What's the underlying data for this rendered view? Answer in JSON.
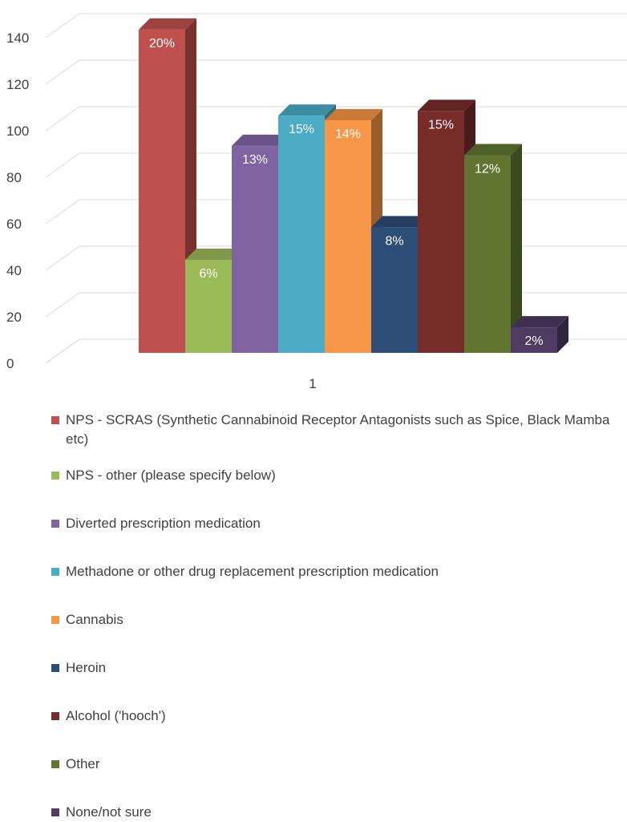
{
  "chart_data": {
    "type": "bar",
    "title": "",
    "xlabel": "",
    "ylabel": "",
    "ylim": [
      0,
      140
    ],
    "yticks": [
      0,
      20,
      40,
      60,
      80,
      100,
      120,
      140
    ],
    "categories": [
      "1"
    ],
    "grid": true,
    "legend_position": "bottom",
    "series": [
      {
        "name": "NPS - SCRAS  (Synthetic Cannabinoid Receptor Antagonists such as Spice, Black Mamba etc)",
        "values": [
          139
        ],
        "label": "20%",
        "color": "#C0504D"
      },
      {
        "name": "NPS - other (please specify below)",
        "values": [
          40
        ],
        "label": "6%",
        "color": "#9BBB59"
      },
      {
        "name": "Diverted prescription medication",
        "values": [
          89
        ],
        "label": "13%",
        "color": "#8064A2"
      },
      {
        "name": "Methadone or other drug replacement prescription medication",
        "values": [
          102
        ],
        "label": "15%",
        "color": "#4BACC6"
      },
      {
        "name": "Cannabis",
        "values": [
          100
        ],
        "label": "14%",
        "color": "#F79646"
      },
      {
        "name": "Heroin",
        "values": [
          54
        ],
        "label": "8%",
        "color": "#2C4D75"
      },
      {
        "name": "Alcohol ('hooch')",
        "values": [
          104
        ],
        "label": "15%",
        "color": "#772C2A"
      },
      {
        "name": "Other",
        "values": [
          85
        ],
        "label": "12%",
        "color": "#5F7530"
      },
      {
        "name": "None/not sure",
        "values": [
          11
        ],
        "label": "2%",
        "color": "#4D3B62"
      }
    ]
  }
}
